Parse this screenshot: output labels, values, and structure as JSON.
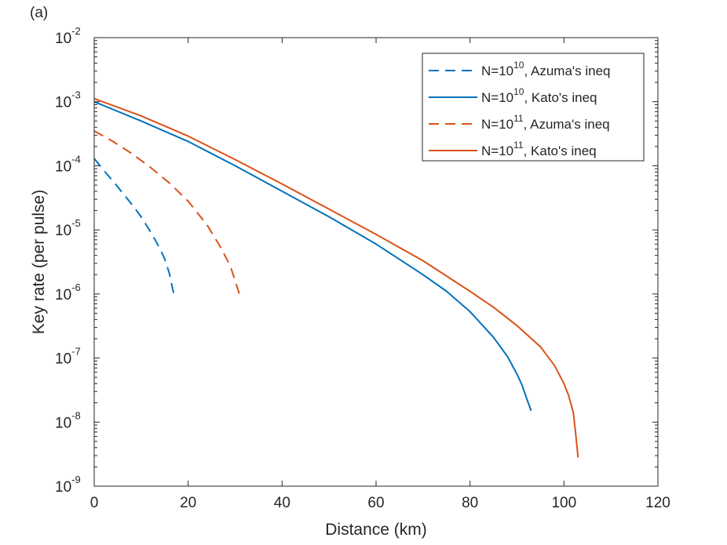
{
  "chart_data": {
    "type": "line",
    "panel_label": "(a)",
    "xlabel": "Distance (km)",
    "ylabel": "Key rate (per pulse)",
    "xlim": [
      0,
      120
    ],
    "ylim": [
      1e-09,
      0.01
    ],
    "yscale": "log",
    "xticks": [
      {
        "value": 0,
        "label": "0"
      },
      {
        "value": 20,
        "label": "20"
      },
      {
        "value": 40,
        "label": "40"
      },
      {
        "value": 60,
        "label": "60"
      },
      {
        "value": 80,
        "label": "80"
      },
      {
        "value": 100,
        "label": "100"
      },
      {
        "value": 120,
        "label": "120"
      }
    ],
    "yticks": [
      {
        "value": -9,
        "base": "10",
        "exp": "-9"
      },
      {
        "value": -8,
        "base": "10",
        "exp": "-8"
      },
      {
        "value": -7,
        "base": "10",
        "exp": "-7"
      },
      {
        "value": -6,
        "base": "10",
        "exp": "-6"
      },
      {
        "value": -5,
        "base": "10",
        "exp": "-5"
      },
      {
        "value": -4,
        "base": "10",
        "exp": "-4"
      },
      {
        "value": -3,
        "base": "10",
        "exp": "-3"
      },
      {
        "value": -2,
        "base": "10",
        "exp": "-2"
      }
    ],
    "legend_position": "top-right",
    "series": [
      {
        "name": "N=10^10, Azuma's ineq",
        "label_prefix": "N=10",
        "label_exp": "10",
        "label_suffix": ", Azuma's ineq",
        "color": "#0072BD",
        "style": "dashed",
        "x": [
          0,
          2,
          4,
          6,
          8,
          10,
          12,
          14,
          15,
          16,
          17
        ],
        "y": [
          0.00013,
          8.5e-05,
          5.8e-05,
          3.8e-05,
          2.5e-05,
          1.6e-05,
          9.3e-06,
          5.1e-06,
          3.5e-06,
          2.1e-06,
          9.5e-07
        ]
      },
      {
        "name": "N=10^10, Kato's ineq",
        "label_prefix": "N=10",
        "label_exp": "10",
        "label_suffix": ", Kato's ineq",
        "color": "#0072BD",
        "style": "solid",
        "x": [
          0,
          10,
          20,
          30,
          40,
          50,
          60,
          70,
          75,
          80,
          85,
          88,
          90,
          91,
          92,
          93
        ],
        "y": [
          0.001,
          0.0005,
          0.00024,
          0.0001,
          4e-05,
          1.6e-05,
          6e-06,
          2e-06,
          1.1e-06,
          5.3e-07,
          2.1e-07,
          1.05e-07,
          5.6e-08,
          3.9e-08,
          2.4e-08,
          1.5e-08
        ]
      },
      {
        "name": "N=10^11, Azuma's ineq",
        "label_prefix": "N=10",
        "label_exp": "11",
        "label_suffix": ", Azuma's ineq",
        "color": "#D95319",
        "style": "dashed",
        "x": [
          0,
          4,
          8,
          12,
          16,
          20,
          24,
          27,
          29,
          31
        ],
        "y": [
          0.00035,
          0.00024,
          0.000155,
          9.4e-05,
          5.4e-05,
          2.8e-05,
          1.2e-05,
          5.2e-06,
          2.7e-06,
          9.5e-07
        ]
      },
      {
        "name": "N=10^11, Kato's ineq",
        "label_prefix": "N=10",
        "label_exp": "11",
        "label_suffix": ", Kato's ineq",
        "color": "#D95319",
        "style": "solid",
        "x": [
          0,
          10,
          20,
          30,
          40,
          50,
          60,
          70,
          80,
          85,
          90,
          95,
          98,
          100,
          101,
          102,
          102.5,
          103
        ],
        "y": [
          0.00112,
          0.0006,
          0.00029,
          0.000125,
          5.2e-05,
          2.1e-05,
          8.5e-06,
          3.3e-06,
          1.1e-06,
          6.2e-07,
          3.2e-07,
          1.5e-07,
          7.6e-08,
          4e-08,
          2.6e-08,
          1.4e-08,
          6.5e-09,
          2.8e-09
        ]
      }
    ]
  }
}
